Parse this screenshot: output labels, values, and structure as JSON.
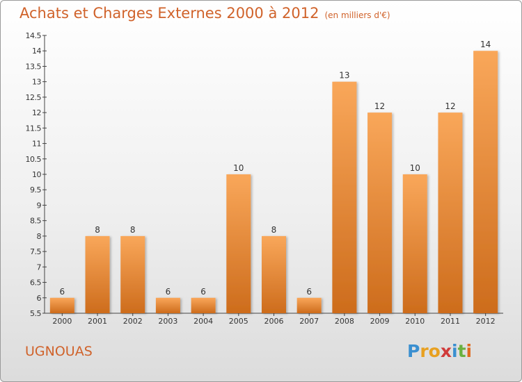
{
  "title": "Achats et Charges Externes 2000 à 2012",
  "unit": "(en milliers d'€)",
  "commune": "UGNOUAS",
  "logo_text": "Proxiti",
  "colors": {
    "accent": "#d0622a",
    "bar_top": "#f9a75a",
    "bar_bottom": "#cd6c1c"
  },
  "chart_data": {
    "type": "bar",
    "title": "Achats et Charges Externes 2000 à 2012",
    "xlabel": "",
    "ylabel": "",
    "categories": [
      "2000",
      "2001",
      "2002",
      "2003",
      "2004",
      "2005",
      "2006",
      "2007",
      "2008",
      "2009",
      "2010",
      "2011",
      "2012"
    ],
    "values": [
      6,
      8,
      8,
      6,
      6,
      10,
      8,
      6,
      13,
      12,
      10,
      12,
      14
    ],
    "data_labels": [
      "6",
      "8",
      "8",
      "6",
      "6",
      "10",
      "8",
      "6",
      "13",
      "12",
      "10",
      "12",
      "14"
    ],
    "ylim": [
      5.5,
      14.5
    ],
    "yticks": [
      5.5,
      6,
      6.5,
      7,
      7.5,
      8,
      8.5,
      9,
      9.5,
      10,
      10.5,
      11,
      11.5,
      12,
      12.5,
      13,
      13.5,
      14,
      14.5
    ],
    "ytick_labels": [
      "5.5",
      "6",
      "6.5",
      "7",
      "7.5",
      "8",
      "8.5",
      "9",
      "9.5",
      "10",
      "10.5",
      "11",
      "11.5",
      "12",
      "12.5",
      "13",
      "13.5",
      "14",
      "14.5"
    ],
    "grid": false,
    "legend": "none"
  }
}
